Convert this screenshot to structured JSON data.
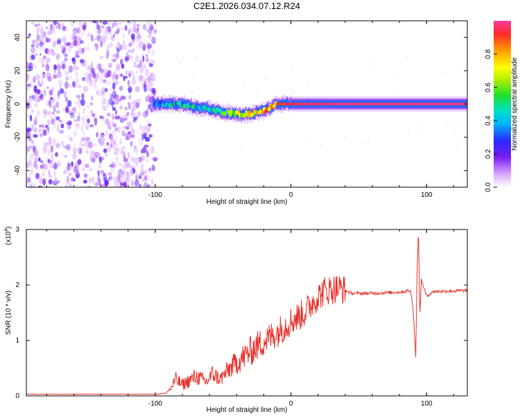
{
  "title": "C2E1.2026.034.07.12.R24",
  "chart_data": [
    {
      "type": "heatmap",
      "xlabel": "Height of straight line (km)",
      "ylabel": "Frequency (Hz)",
      "xlim": [
        -195,
        130
      ],
      "ylim": [
        -50,
        50
      ],
      "xticks": [
        -100,
        0,
        100
      ],
      "xtick_labels": [
        "-100",
        "0",
        "100"
      ],
      "yticks": [
        -40,
        -20,
        0,
        20,
        40
      ],
      "ytick_labels": [
        "-40",
        "-20",
        "0",
        "20",
        "40"
      ],
      "colorbar": {
        "label": "Normalized spectral amplitude",
        "range": [
          0,
          1
        ],
        "ticks": [
          0.0,
          0.2,
          0.4,
          0.6,
          0.8
        ],
        "tick_labels": [
          "0.0",
          "0.2",
          "0.4",
          "0.6",
          "0.8"
        ]
      },
      "ridge": {
        "x": [
          -100,
          -90,
          -80,
          -70,
          -60,
          -50,
          -40,
          -30,
          -20,
          -10,
          0,
          10,
          50,
          130
        ],
        "freq": [
          0,
          0,
          0,
          -2,
          -3,
          -5,
          -6,
          -6,
          -4,
          0,
          0,
          0,
          0,
          0
        ],
        "amplitude": [
          0.3,
          0.4,
          0.4,
          0.45,
          0.45,
          0.5,
          0.7,
          0.75,
          0.8,
          0.9,
          0.92,
          0.95,
          0.97,
          0.97
        ]
      },
      "noise_region_x": [
        -195,
        -100
      ]
    },
    {
      "type": "line",
      "xlabel": "Height of straight line (km)",
      "ylabel": "SNR (10 * v/v)",
      "y_scale_label": "(x10",
      "y_scale_exponent": "4",
      "y_scale_close": ")",
      "xlim": [
        -195,
        130
      ],
      "ylim": [
        0,
        3
      ],
      "xticks": [
        -100,
        0,
        100
      ],
      "xtick_labels": [
        "-100",
        "0",
        "100"
      ],
      "yticks": [
        0,
        1,
        2,
        3
      ],
      "ytick_labels": [
        "0",
        "1",
        "2",
        "3"
      ],
      "series": [
        {
          "name": "SNR",
          "color": "#e8302a",
          "x": [
            -195,
            -100,
            -92,
            -88,
            -85,
            -80,
            -70,
            -62,
            -58,
            -52,
            -45,
            -35,
            -25,
            -10,
            0,
            10,
            18,
            25,
            30,
            35,
            45,
            60,
            80,
            88,
            90,
            92,
            93,
            94,
            95,
            96,
            100,
            105,
            130
          ],
          "y": [
            0.03,
            0.03,
            0.05,
            0.15,
            0.3,
            0.2,
            0.35,
            0.25,
            0.4,
            0.3,
            0.5,
            0.7,
            0.9,
            1.15,
            1.35,
            1.5,
            1.75,
            1.9,
            1.92,
            1.95,
            1.85,
            1.85,
            1.87,
            1.9,
            1.6,
            0.7,
            2.3,
            3.0,
            1.4,
            2.1,
            1.8,
            1.88,
            1.9
          ]
        }
      ]
    }
  ]
}
